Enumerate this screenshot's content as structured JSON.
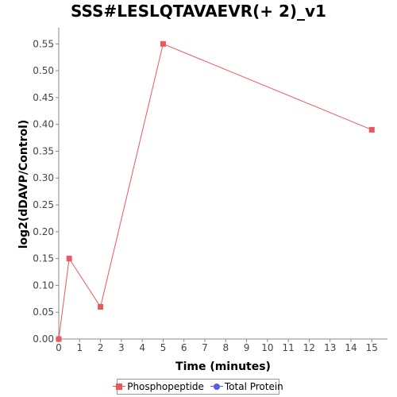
{
  "chart_data": {
    "type": "line",
    "title": "SSS#LESLQTAVAEVR(+ 2)_v1",
    "xlabel": "Time (minutes)",
    "ylabel": "log2(dDAVP/Control)",
    "xlim": [
      0,
      15.75
    ],
    "ylim": [
      0,
      0.58
    ],
    "x_ticks": [
      "0",
      "1",
      "2",
      "3",
      "4",
      "5",
      "6",
      "7",
      "8",
      "9",
      "10",
      "11",
      "12",
      "13",
      "14",
      "15"
    ],
    "y_ticks": [
      "0.00",
      "0.05",
      "0.10",
      "0.15",
      "0.20",
      "0.25",
      "0.30",
      "0.35",
      "0.40",
      "0.45",
      "0.50",
      "0.55"
    ],
    "grid": false,
    "legend_position": "bottom",
    "series": [
      {
        "name": "Phosphopeptide",
        "color": "#e8585c",
        "marker": "square",
        "x": [
          0,
          0.5,
          2,
          5,
          15
        ],
        "y": [
          0.0,
          0.15,
          0.06,
          0.55,
          0.39
        ]
      },
      {
        "name": "Total Protein",
        "color": "#5a5ae8",
        "marker": "circle",
        "x": [],
        "y": []
      }
    ]
  }
}
